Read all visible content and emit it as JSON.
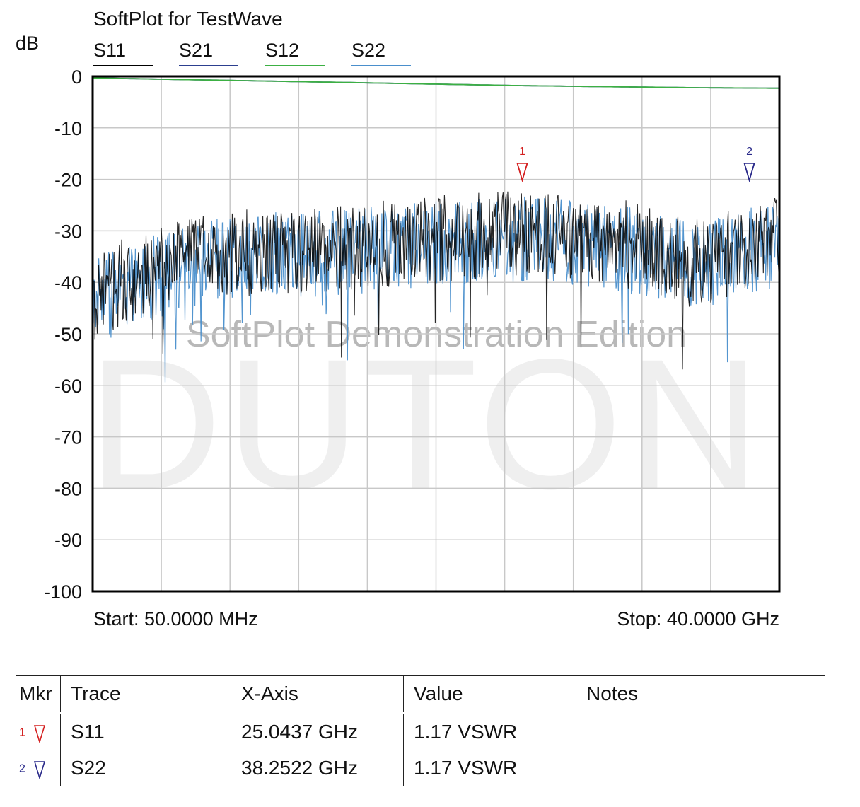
{
  "chart_data": {
    "type": "line",
    "title": "SoftPlot for TestWave",
    "ylabel": "dB",
    "ylim": [
      -100,
      0
    ],
    "y_ticks": [
      "0",
      "-10",
      "-20",
      "-30",
      "-40",
      "-50",
      "-60",
      "-70",
      "-80",
      "-90",
      "-100"
    ],
    "x_range_ghz": [
      0.05,
      40
    ],
    "start_label": "Start: 50.0000 MHz",
    "stop_label": "Stop: 40.0000 GHz",
    "grid": true,
    "legend_placement": "top",
    "watermark": "SoftPlot Demonstration Edition",
    "watermark_logo": "DUTON",
    "series": [
      {
        "name": "S11",
        "color": "#000000",
        "kind": "noisy",
        "x": [
          0.05,
          2,
          5,
          8,
          11,
          14,
          17,
          20,
          23,
          25,
          28,
          31,
          33,
          35,
          37,
          38.5,
          40
        ],
        "y": [
          -39,
          -35,
          -32,
          -30,
          -29.5,
          -29,
          -28,
          -27,
          -26.5,
          -26,
          -26.5,
          -28,
          -30,
          -32,
          -30,
          -28,
          -27
        ]
      },
      {
        "name": "S21",
        "color": "#2c3f8f",
        "kind": "smooth",
        "x": [
          0.05,
          5,
          10,
          15,
          20,
          25,
          30,
          35,
          40
        ],
        "y": [
          -0.3,
          -0.6,
          -0.9,
          -1.2,
          -1.5,
          -1.8,
          -2.0,
          -2.2,
          -2.3
        ]
      },
      {
        "name": "S12",
        "color": "#3cb043",
        "kind": "smooth",
        "x": [
          0.05,
          5,
          10,
          15,
          20,
          25,
          30,
          35,
          40
        ],
        "y": [
          -0.3,
          -0.6,
          -0.9,
          -1.2,
          -1.5,
          -1.8,
          -2.0,
          -2.2,
          -2.3
        ]
      },
      {
        "name": "S22",
        "color": "#4a8fcc",
        "kind": "noisy",
        "x": [
          0.05,
          2,
          5,
          8,
          11,
          14,
          17,
          20,
          23,
          25,
          28,
          31,
          33,
          35,
          37,
          38.5,
          40
        ],
        "y": [
          -40,
          -36,
          -33,
          -31,
          -30,
          -30,
          -29,
          -28,
          -27.5,
          -27,
          -27.5,
          -29,
          -31,
          -32,
          -31,
          -29,
          -28
        ]
      }
    ],
    "markers": [
      {
        "id": "1",
        "trace": "S11",
        "x_ghz": 25.0437,
        "y": -21,
        "color": "#d42020"
      },
      {
        "id": "2",
        "trace": "S22",
        "x_ghz": 38.2522,
        "y": -21,
        "color": "#2a2a8a"
      }
    ]
  },
  "marker_table": {
    "headers": [
      "Mkr",
      "Trace",
      "X-Axis",
      "Value",
      "Notes"
    ],
    "rows": [
      {
        "mkr": "1",
        "color": "#d42020",
        "trace": "S11",
        "x_axis": "25.0437 GHz",
        "value": "1.17 VSWR",
        "notes": ""
      },
      {
        "mkr": "2",
        "color": "#2a2a8a",
        "trace": "S22",
        "x_axis": "38.2522 GHz",
        "value": "1.17 VSWR",
        "notes": ""
      }
    ]
  }
}
